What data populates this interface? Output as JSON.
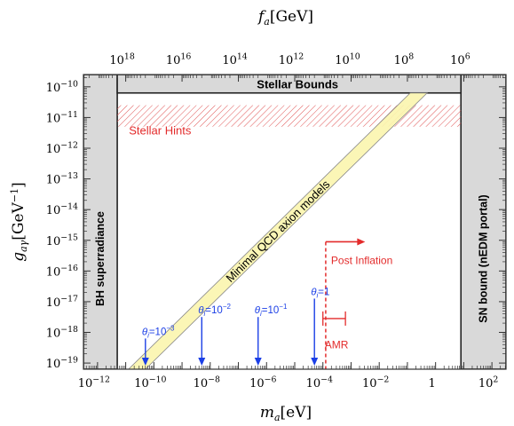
{
  "chart_data": {
    "type": "region-plot",
    "x_axis": {
      "label_main": "m",
      "label_sub": "a",
      "label_unit": "[eV]",
      "scale": "log10",
      "range": [
        -12.5,
        2.5
      ],
      "ticks": [
        {
          "exp": -12,
          "label_base": "10",
          "label_exp": "−12"
        },
        {
          "exp": -10,
          "label_base": "10",
          "label_exp": "−10"
        },
        {
          "exp": -8,
          "label_base": "10",
          "label_exp": "−8"
        },
        {
          "exp": -6,
          "label_base": "10",
          "label_exp": "−6"
        },
        {
          "exp": -4,
          "label_base": "10",
          "label_exp": "−4"
        },
        {
          "exp": -2,
          "label_base": "10",
          "label_exp": "−2"
        },
        {
          "exp": 0,
          "label_base": "1",
          "label_exp": ""
        },
        {
          "exp": 2,
          "label_base": "10",
          "label_exp": "2"
        }
      ]
    },
    "top_axis": {
      "label_main": "f",
      "label_sub": "a",
      "label_unit": "[GeV]",
      "scale": "log10",
      "ticks": [
        {
          "at_ma_exp": -11.0,
          "label_base": "10",
          "label_exp": "18"
        },
        {
          "at_ma_exp": -9.0,
          "label_base": "10",
          "label_exp": "16"
        },
        {
          "at_ma_exp": -7.0,
          "label_base": "10",
          "label_exp": "14"
        },
        {
          "at_ma_exp": -5.0,
          "label_base": "10",
          "label_exp": "12"
        },
        {
          "at_ma_exp": -3.0,
          "label_base": "10",
          "label_exp": "10"
        },
        {
          "at_ma_exp": -1.0,
          "label_base": "10",
          "label_exp": "8"
        },
        {
          "at_ma_exp": 1.0,
          "label_base": "10",
          "label_exp": "6"
        }
      ]
    },
    "y_axis": {
      "label_main": "g",
      "label_sub": "aγ",
      "label_unit": "[GeV",
      "label_unit_exp": "−1",
      "label_unit_close": "]",
      "scale": "log10",
      "range": [
        -19.2,
        -9.6
      ],
      "ticks": [
        {
          "exp": -10,
          "label_base": "10",
          "label_exp": "−10"
        },
        {
          "exp": -11,
          "label_base": "10",
          "label_exp": "−11"
        },
        {
          "exp": -12,
          "label_base": "10",
          "label_exp": "−12"
        },
        {
          "exp": -13,
          "label_base": "10",
          "label_exp": "−13"
        },
        {
          "exp": -14,
          "label_base": "10",
          "label_exp": "−14"
        },
        {
          "exp": -15,
          "label_base": "10",
          "label_exp": "−15"
        },
        {
          "exp": -16,
          "label_base": "10",
          "label_exp": "−16"
        },
        {
          "exp": -17,
          "label_base": "10",
          "label_exp": "−17"
        },
        {
          "exp": -18,
          "label_base": "10",
          "label_exp": "−18"
        },
        {
          "exp": -19,
          "label_base": "10",
          "label_exp": "−19"
        }
      ]
    },
    "regions": [
      {
        "label": "BH superradiance",
        "x_range": [
          -12.5,
          -11.3
        ],
        "y_range": [
          -19.2,
          -9.6
        ],
        "fill": "#d9d9d9"
      },
      {
        "label": "SN bound (nEDM portal)",
        "x_range": [
          0.9,
          2.5
        ],
        "y_range": [
          -19.2,
          -9.6
        ],
        "fill": "#d9d9d9"
      },
      {
        "label": "Stellar Bounds",
        "x_range": [
          -11.3,
          0.9
        ],
        "y_range": [
          -10.2,
          -9.6
        ],
        "fill": "#d9d9d9"
      },
      {
        "label": "Stellar Hints",
        "x_range": [
          -11.3,
          0.9
        ],
        "y_range": [
          -11.3,
          -10.6
        ],
        "hatch": "#e05555"
      }
    ],
    "band": {
      "label": "Minimal QCD axion models",
      "lower_edge": [
        [
          -10.3,
          -19.2
        ],
        [
          -0.3,
          -10.2
        ]
      ],
      "upper_edge": [
        [
          -10.9,
          -19.2
        ],
        [
          -0.9,
          -10.2
        ]
      ],
      "fill": "#fbf5b0",
      "stroke": "#888888"
    },
    "theta_markers": [
      {
        "label_main": "θ",
        "label_sub": "i",
        "label_eq": "=10",
        "label_exp": "−3",
        "ma_exp": -10.3,
        "y_top_exp": -18.2
      },
      {
        "label_main": "θ",
        "label_sub": "i",
        "label_eq": "=10",
        "label_exp": "−2",
        "ma_exp": -8.3,
        "y_top_exp": -17.5
      },
      {
        "label_main": "θ",
        "label_sub": "i",
        "label_eq": "=10",
        "label_exp": "−1",
        "ma_exp": -6.3,
        "y_top_exp": -17.5
      },
      {
        "label_main": "θ",
        "label_sub": "i",
        "label_eq": "=1",
        "label_exp": "",
        "ma_exp": -4.3,
        "y_top_exp": -16.9
      }
    ],
    "post_inflation": {
      "label": "Post Inflation",
      "ma_exp": -3.9,
      "y_top_exp": -15.05,
      "arrow_to_exp": -2.5,
      "color": "#e32b2b"
    },
    "amr": {
      "label": "AMR",
      "x_range": [
        -4.0,
        -3.2
      ],
      "y_center_exp": -17.55,
      "y_label_exp": -18.4,
      "color": "#e32b2b"
    },
    "colors": {
      "theta_blue": "#1b3fe6",
      "red": "#e32b2b",
      "frame": "#333333"
    }
  }
}
